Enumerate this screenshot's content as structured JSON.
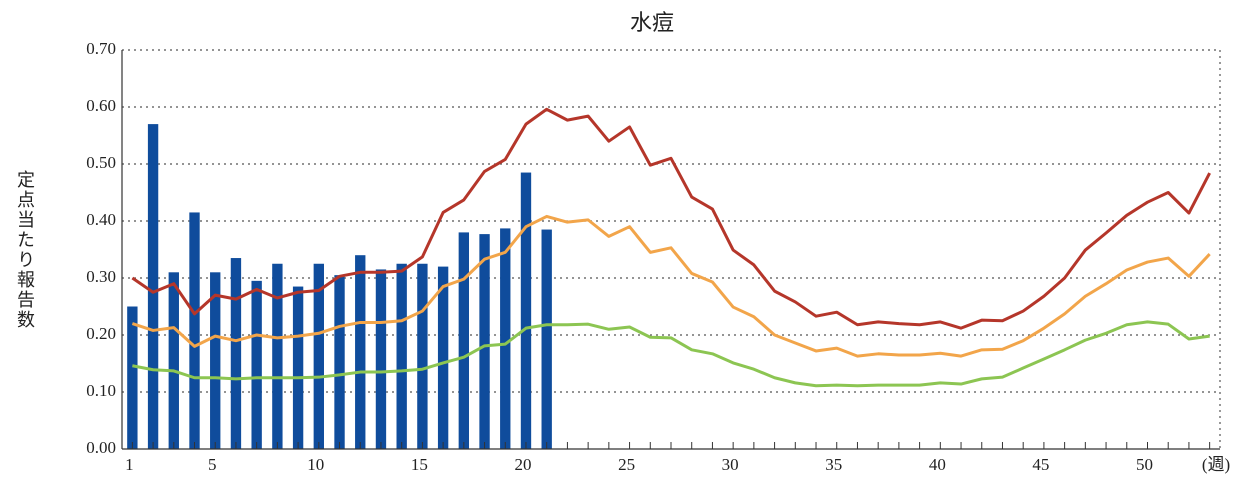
{
  "chart_data": {
    "type": "bar",
    "title": "水痘",
    "y_label": "定点当たり報告数",
    "x_label": "(週)",
    "x": [
      1,
      2,
      3,
      4,
      5,
      6,
      7,
      8,
      9,
      10,
      11,
      12,
      13,
      14,
      15,
      16,
      17,
      18,
      19,
      20,
      21,
      22,
      23,
      24,
      25,
      26,
      27,
      28,
      29,
      30,
      31,
      32,
      33,
      34,
      35,
      36,
      37,
      38,
      39,
      40,
      41,
      42,
      43,
      44,
      45,
      46,
      47,
      48,
      49,
      50,
      51,
      52,
      53
    ],
    "xlim": [
      0.5,
      53.5
    ],
    "xticks": [
      1,
      5,
      10,
      15,
      20,
      25,
      30,
      35,
      40,
      45,
      50
    ],
    "ylim": [
      0,
      0.7
    ],
    "yticks": [
      {
        "value": 0,
        "label": "0.00"
      },
      {
        "value": 0.1,
        "label": "0.10"
      },
      {
        "value": 0.2,
        "label": "0.20"
      },
      {
        "value": 0.3,
        "label": "0.30"
      },
      {
        "value": 0.4,
        "label": "0.40"
      },
      {
        "value": 0.5,
        "label": "0.50"
      },
      {
        "value": 0.6,
        "label": "0.60"
      },
      {
        "value": 0.7,
        "label": "0.70"
      }
    ],
    "grid": true,
    "series": [
      {
        "type": "bar",
        "color": "#0f4c9c",
        "values": [
          0.25,
          0.57,
          0.31,
          0.415,
          0.31,
          0.335,
          0.295,
          0.325,
          0.285,
          0.325,
          0.305,
          0.34,
          0.315,
          0.325,
          0.325,
          0.32,
          0.38,
          0.377,
          0.387,
          0.485,
          0.385,
          null,
          null,
          null,
          null,
          null,
          null,
          null,
          null,
          null,
          null,
          null,
          null,
          null,
          null,
          null,
          null,
          null,
          null,
          null,
          null,
          null,
          null,
          null,
          null,
          null,
          null,
          null,
          null,
          null,
          null,
          null,
          null
        ]
      },
      {
        "type": "line",
        "color": "#b5362a",
        "values": [
          0.3,
          0.275,
          0.29,
          0.237,
          0.27,
          0.263,
          0.28,
          0.265,
          0.275,
          0.278,
          0.303,
          0.31,
          0.31,
          0.312,
          0.337,
          0.415,
          0.437,
          0.487,
          0.508,
          0.57,
          0.596,
          0.577,
          0.584,
          0.54,
          0.565,
          0.498,
          0.51,
          0.442,
          0.421,
          0.349,
          0.323,
          0.277,
          0.258,
          0.233,
          0.24,
          0.218,
          0.223,
          0.22,
          0.218,
          0.223,
          0.212,
          0.226,
          0.225,
          0.242,
          0.268,
          0.3,
          0.349,
          0.379,
          0.41,
          0.433,
          0.45,
          0.414,
          0.484
        ]
      },
      {
        "type": "line",
        "color": "#f2a54a",
        "values": [
          0.22,
          0.208,
          0.213,
          0.18,
          0.198,
          0.19,
          0.2,
          0.195,
          0.198,
          0.203,
          0.215,
          0.222,
          0.222,
          0.225,
          0.242,
          0.285,
          0.298,
          0.333,
          0.345,
          0.39,
          0.408,
          0.398,
          0.402,
          0.373,
          0.39,
          0.345,
          0.353,
          0.308,
          0.293,
          0.249,
          0.232,
          0.2,
          0.186,
          0.172,
          0.177,
          0.163,
          0.167,
          0.165,
          0.165,
          0.168,
          0.163,
          0.174,
          0.175,
          0.19,
          0.212,
          0.237,
          0.268,
          0.29,
          0.314,
          0.328,
          0.335,
          0.303,
          0.342
        ]
      },
      {
        "type": "line",
        "color": "#8cc552",
        "values": [
          0.146,
          0.139,
          0.137,
          0.125,
          0.125,
          0.123,
          0.125,
          0.125,
          0.125,
          0.126,
          0.13,
          0.135,
          0.135,
          0.137,
          0.14,
          0.151,
          0.161,
          0.181,
          0.184,
          0.212,
          0.218,
          0.218,
          0.219,
          0.21,
          0.214,
          0.196,
          0.195,
          0.174,
          0.167,
          0.151,
          0.14,
          0.125,
          0.116,
          0.111,
          0.112,
          0.111,
          0.112,
          0.112,
          0.112,
          0.116,
          0.114,
          0.123,
          0.126,
          0.142,
          0.158,
          0.174,
          0.191,
          0.203,
          0.218,
          0.223,
          0.219,
          0.193,
          0.198
        ]
      }
    ]
  }
}
